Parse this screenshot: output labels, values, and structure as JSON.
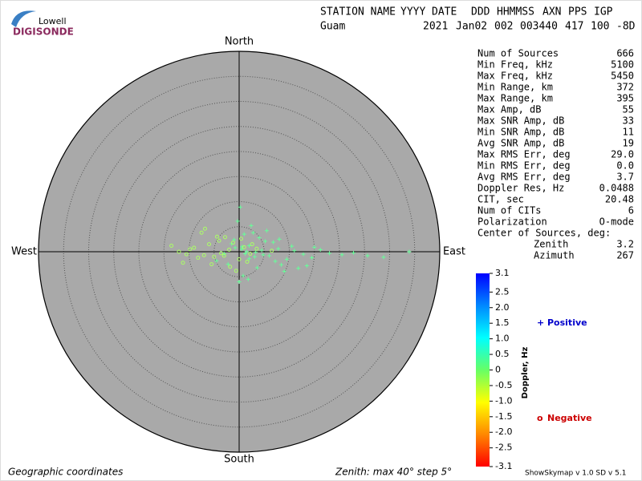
{
  "logo": {
    "line1": "Lowell",
    "line2": "DIGISONDE"
  },
  "header": {
    "labels": [
      "STATION NAME",
      "YYYY",
      "DATE",
      "DDD",
      "HHMMSS",
      "AXN",
      "PPS",
      "IGP"
    ],
    "values": [
      "Guam",
      "2021",
      "Jan02",
      "002",
      "003440",
      "417",
      "100",
      "-8D"
    ]
  },
  "stats": {
    "rows": [
      [
        "Num of Sources",
        "666"
      ],
      [
        "Min Freq, kHz",
        "5100"
      ],
      [
        "Max Freq, kHz",
        "5450"
      ],
      [
        "Min Range, km",
        "372"
      ],
      [
        "Max Range, km",
        "395"
      ],
      [
        "Max Amp, dB",
        "55"
      ],
      [
        "Max SNR Amp, dB",
        "33"
      ],
      [
        "Min SNR Amp, dB",
        "11"
      ],
      [
        "Avg SNR Amp, dB",
        "19"
      ],
      [
        "Max RMS Err, deg",
        "29.0"
      ],
      [
        "Min RMS Err, deg",
        "0.0"
      ],
      [
        "Avg RMS Err, deg",
        "3.7"
      ],
      [
        "Doppler Res, Hz",
        "0.0488"
      ],
      [
        "CIT, sec",
        "20.48"
      ],
      [
        "Num of CITs",
        "6"
      ],
      [
        "Polarization",
        "O-mode"
      ]
    ],
    "center_title": "Center of Sources, deg:",
    "center": [
      [
        "Zenith",
        "3.2"
      ],
      [
        "Azimuth",
        "267"
      ]
    ]
  },
  "footer": {
    "left": "Geographic coordinates",
    "middle": "Zenith: max 40°  step 5°",
    "right": "ShowSkymap v 1.0  SD v 5.1"
  },
  "chart_data": {
    "type": "polar-scatter",
    "directions": {
      "north": "North",
      "south": "South",
      "east": "East",
      "west": "West"
    },
    "rlim": [
      0,
      40
    ],
    "rticks": [
      5,
      10,
      15,
      20,
      25,
      30,
      35,
      40
    ],
    "series": [
      {
        "name": "Positive",
        "marker": "+",
        "color": "#66ff99",
        "legend_color": "#0000cc",
        "x": [
          0.5,
          1.2,
          2.0,
          -0.8,
          3.1,
          4.5,
          6.0,
          7.8,
          9.5,
          11.0,
          12.8,
          14.5,
          16.2,
          18.0,
          20.5,
          22.8,
          25.6,
          28.8,
          33.9,
          -1.5,
          -3.0,
          1.0,
          2.4,
          0.2,
          5.2,
          8.4,
          10.5,
          13.5,
          3.6,
          -2.2,
          0.8,
          1.8,
          4.0,
          6.8,
          -0.3,
          2.8,
          9.0,
          15.0,
          -4.5,
          0.0,
          3.3,
          1.5,
          7.2,
          11.8,
          5.5,
          -1.0,
          2.0,
          0.6,
          4.8,
          8.0
        ],
        "y": [
          0.5,
          -0.4,
          1.2,
          0.8,
          -1.0,
          0.3,
          -0.8,
          0.6,
          -1.5,
          0.2,
          -0.5,
          -1.2,
          0.4,
          -0.3,
          -0.6,
          -0.2,
          -0.8,
          -1.1,
          0.0,
          1.6,
          -0.4,
          3.5,
          5.2,
          8.9,
          2.1,
          -2.6,
          1.1,
          -2.8,
          -3.2,
          -2.5,
          -4.8,
          -5.5,
          2.8,
          1.9,
          6.1,
          3.8,
          -3.9,
          0.9,
          -1.8,
          -6.0,
          -0.1,
          0.0,
          -1.9,
          -3.3,
          4.2,
          2.4,
          -1.4,
          1.0,
          -0.6,
          2.5
        ]
      },
      {
        "name": "Negative",
        "marker": "o",
        "color": "#aaff66",
        "legend_color": "#cc0000",
        "x": [
          -13.5,
          -12.0,
          -10.5,
          -9.0,
          -7.5,
          -6.0,
          -5.0,
          -4.0,
          -3.0,
          -2.0,
          -1.2,
          0.0,
          1.0,
          2.2,
          3.5,
          -8.2,
          -6.8,
          -5.5,
          -2.8,
          -1.8,
          0.4,
          1.6,
          -3.6,
          -0.6,
          2.6,
          -9.8,
          -4.4,
          6.5,
          -7.0,
          -11.2
        ],
        "y": [
          1.2,
          0.0,
          -0.5,
          0.8,
          3.8,
          1.5,
          -1.0,
          2.2,
          -0.8,
          0.4,
          1.8,
          -1.5,
          0.9,
          -0.4,
          0.6,
          -1.2,
          4.6,
          -2.5,
          2.9,
          -3.0,
          2.6,
          -2.0,
          -0.3,
          -3.8,
          1.5,
          0.5,
          3.0,
          0.2,
          -0.7,
          -2.2
        ]
      }
    ],
    "colorbar": {
      "label": "Doppler, Hz",
      "lim": [
        -3.1,
        3.1
      ],
      "ticks": [
        3.1,
        2.5,
        {
          "value": 2,
          "label": "2.0"
        },
        1.5,
        {
          "value": 1,
          "label": "1.0"
        },
        0.5,
        0,
        -0.5,
        {
          "value": -1,
          "label": "-1.0"
        },
        -1.5,
        {
          "value": -2,
          "label": "-2.0"
        },
        -2.5,
        -3.1
      ],
      "colors": [
        "#ff0000",
        "#ff8800",
        "#ffff00",
        "#66ff66",
        "#00ffff",
        "#0088ff",
        "#0000ff"
      ]
    }
  }
}
